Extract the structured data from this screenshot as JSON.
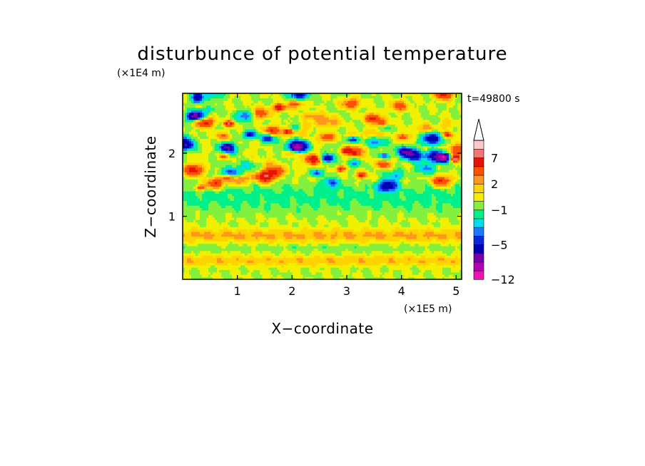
{
  "chart_data": {
    "type": "heatmap",
    "title": "disturbunce of potential temperature",
    "time_label": "t=49800 s",
    "xlabel": "X−coordinate",
    "ylabel": "Z−coordinate",
    "x_scale_label": "(×1E5 m)",
    "y_scale_label": "(×1E4 m)",
    "xlim": [
      0,
      5.1
    ],
    "ylim": [
      0,
      2.95
    ],
    "x_ticks": [
      1,
      2,
      3,
      4,
      5
    ],
    "y_ticks": [
      1,
      2
    ],
    "colorbar": {
      "levels": [
        -12,
        -11,
        -9,
        -7,
        -5,
        -4,
        -3,
        -2,
        -1,
        0,
        1,
        2,
        3,
        5,
        7,
        9,
        11
      ],
      "tick_values": [
        -12,
        -5,
        -1,
        2,
        7
      ],
      "tick_labels": [
        "−12",
        "−5",
        "−1",
        "2",
        "7"
      ],
      "colors": [
        "#f012b4",
        "#b400b4",
        "#7800aa",
        "#0000b4",
        "#0a28dc",
        "#1e78ff",
        "#00dcf0",
        "#00f08c",
        "#82f03c",
        "#f0f000",
        "#ffd200",
        "#ff961e",
        "#ff5000",
        "#e61400",
        "#f07878",
        "#ffc8c8"
      ],
      "extend": "max"
    },
    "field_description": "alternating warm/cold wave cells at upper levels (Z>1.5), cyan cool band around Z~1.0-1.5, warm yellow layers near Z~0.6-0.8 and Z~0.2-0.4 separated by green bands"
  }
}
